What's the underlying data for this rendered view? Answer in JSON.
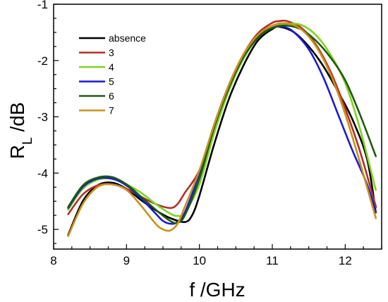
{
  "chart_data": {
    "type": "line",
    "xlabel": "f /GHz",
    "ylabel": {
      "main": "R",
      "sub": "L",
      "rest": " /dB"
    },
    "xlim": [
      8,
      12.5
    ],
    "ylim": [
      -5.35,
      -1
    ],
    "xticks": [
      8,
      9,
      10,
      11,
      12
    ],
    "yticks": [
      -1,
      -2,
      -3,
      -4,
      -5
    ],
    "legend_position": "top-left",
    "series": [
      {
        "name": "absence",
        "color": "#000000",
        "points": [
          [
            8.2,
            -5.1
          ],
          [
            8.4,
            -4.5
          ],
          [
            8.6,
            -4.22
          ],
          [
            8.8,
            -4.17
          ],
          [
            9.0,
            -4.28
          ],
          [
            9.2,
            -4.48
          ],
          [
            9.4,
            -4.66
          ],
          [
            9.6,
            -4.8
          ],
          [
            9.8,
            -4.87
          ],
          [
            9.9,
            -4.75
          ],
          [
            10.0,
            -4.4
          ],
          [
            10.2,
            -3.5
          ],
          [
            10.4,
            -2.7
          ],
          [
            10.6,
            -2.1
          ],
          [
            10.8,
            -1.65
          ],
          [
            11.0,
            -1.44
          ],
          [
            11.1,
            -1.4
          ],
          [
            11.3,
            -1.5
          ],
          [
            11.5,
            -1.75
          ],
          [
            11.7,
            -2.1
          ],
          [
            11.9,
            -2.55
          ],
          [
            12.1,
            -3.05
          ],
          [
            12.3,
            -3.75
          ],
          [
            12.42,
            -4.7
          ]
        ]
      },
      {
        "name": "3",
        "color": "#b0302a",
        "points": [
          [
            8.2,
            -4.73
          ],
          [
            8.4,
            -4.38
          ],
          [
            8.6,
            -4.22
          ],
          [
            8.8,
            -4.2
          ],
          [
            9.0,
            -4.28
          ],
          [
            9.2,
            -4.42
          ],
          [
            9.4,
            -4.55
          ],
          [
            9.6,
            -4.62
          ],
          [
            9.7,
            -4.55
          ],
          [
            9.8,
            -4.35
          ],
          [
            10.0,
            -3.95
          ],
          [
            10.2,
            -3.2
          ],
          [
            10.4,
            -2.45
          ],
          [
            10.6,
            -1.9
          ],
          [
            10.8,
            -1.52
          ],
          [
            11.0,
            -1.33
          ],
          [
            11.1,
            -1.3
          ],
          [
            11.2,
            -1.3
          ],
          [
            11.4,
            -1.42
          ],
          [
            11.6,
            -1.72
          ],
          [
            11.8,
            -2.2
          ],
          [
            12.0,
            -2.85
          ],
          [
            12.2,
            -3.6
          ],
          [
            12.4,
            -4.5
          ],
          [
            12.42,
            -4.6
          ]
        ]
      },
      {
        "name": "4",
        "color": "#7ed321",
        "points": [
          [
            8.2,
            -4.65
          ],
          [
            8.4,
            -4.28
          ],
          [
            8.6,
            -4.12
          ],
          [
            8.8,
            -4.1
          ],
          [
            9.0,
            -4.2
          ],
          [
            9.2,
            -4.35
          ],
          [
            9.4,
            -4.55
          ],
          [
            9.6,
            -4.72
          ],
          [
            9.7,
            -4.76
          ],
          [
            9.8,
            -4.7
          ],
          [
            10.0,
            -4.2
          ],
          [
            10.2,
            -3.3
          ],
          [
            10.4,
            -2.55
          ],
          [
            10.6,
            -1.98
          ],
          [
            10.8,
            -1.6
          ],
          [
            11.0,
            -1.42
          ],
          [
            11.2,
            -1.35
          ],
          [
            11.4,
            -1.37
          ],
          [
            11.6,
            -1.55
          ],
          [
            11.8,
            -1.9
          ],
          [
            12.0,
            -2.4
          ],
          [
            12.2,
            -3.2
          ],
          [
            12.42,
            -4.3
          ]
        ]
      },
      {
        "name": "5",
        "color": "#1a1ad6",
        "points": [
          [
            8.2,
            -4.62
          ],
          [
            8.4,
            -4.25
          ],
          [
            8.6,
            -4.1
          ],
          [
            8.8,
            -4.1
          ],
          [
            9.0,
            -4.22
          ],
          [
            9.2,
            -4.45
          ],
          [
            9.4,
            -4.72
          ],
          [
            9.5,
            -4.85
          ],
          [
            9.6,
            -4.9
          ],
          [
            9.7,
            -4.87
          ],
          [
            9.8,
            -4.7
          ],
          [
            10.0,
            -4.0
          ],
          [
            10.2,
            -3.15
          ],
          [
            10.4,
            -2.45
          ],
          [
            10.6,
            -1.92
          ],
          [
            10.8,
            -1.58
          ],
          [
            11.0,
            -1.42
          ],
          [
            11.15,
            -1.4
          ],
          [
            11.3,
            -1.5
          ],
          [
            11.5,
            -1.8
          ],
          [
            11.7,
            -2.3
          ],
          [
            11.9,
            -2.95
          ],
          [
            12.1,
            -3.6
          ],
          [
            12.3,
            -4.2
          ],
          [
            12.42,
            -4.7
          ]
        ]
      },
      {
        "name": "6",
        "color": "#1f5a0e",
        "points": [
          [
            8.2,
            -4.6
          ],
          [
            8.4,
            -4.22
          ],
          [
            8.6,
            -4.08
          ],
          [
            8.8,
            -4.07
          ],
          [
            9.0,
            -4.2
          ],
          [
            9.2,
            -4.42
          ],
          [
            9.4,
            -4.65
          ],
          [
            9.6,
            -4.85
          ],
          [
            9.7,
            -4.88
          ],
          [
            9.8,
            -4.75
          ],
          [
            10.0,
            -4.1
          ],
          [
            10.2,
            -3.2
          ],
          [
            10.4,
            -2.5
          ],
          [
            10.6,
            -1.95
          ],
          [
            10.8,
            -1.6
          ],
          [
            11.0,
            -1.42
          ],
          [
            11.2,
            -1.38
          ],
          [
            11.4,
            -1.45
          ],
          [
            11.6,
            -1.65
          ],
          [
            11.8,
            -1.95
          ],
          [
            12.0,
            -2.35
          ],
          [
            12.2,
            -2.95
          ],
          [
            12.42,
            -3.7
          ]
        ]
      },
      {
        "name": "7",
        "color": "#c9921a",
        "points": [
          [
            8.2,
            -5.12
          ],
          [
            8.4,
            -4.55
          ],
          [
            8.6,
            -4.25
          ],
          [
            8.8,
            -4.2
          ],
          [
            9.0,
            -4.3
          ],
          [
            9.2,
            -4.58
          ],
          [
            9.4,
            -4.9
          ],
          [
            9.5,
            -5.0
          ],
          [
            9.6,
            -5.02
          ],
          [
            9.7,
            -4.9
          ],
          [
            9.8,
            -4.6
          ],
          [
            10.0,
            -3.95
          ],
          [
            10.2,
            -3.15
          ],
          [
            10.4,
            -2.45
          ],
          [
            10.6,
            -1.9
          ],
          [
            10.8,
            -1.55
          ],
          [
            11.0,
            -1.38
          ],
          [
            11.2,
            -1.34
          ],
          [
            11.4,
            -1.45
          ],
          [
            11.6,
            -1.75
          ],
          [
            11.8,
            -2.25
          ],
          [
            12.0,
            -2.95
          ],
          [
            12.2,
            -3.8
          ],
          [
            12.42,
            -4.8
          ]
        ]
      }
    ]
  }
}
